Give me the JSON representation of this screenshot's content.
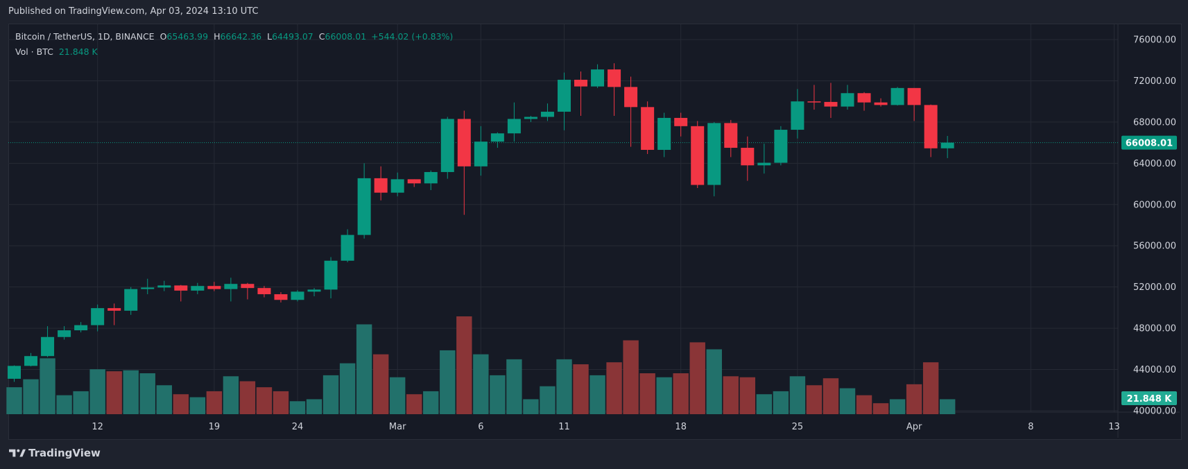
{
  "header": {
    "published": "Published on TradingView.com, Apr 03, 2024 13:10 UTC"
  },
  "legend": {
    "symbol": "Bitcoin / TetherUS, 1D, BINANCE",
    "o_label": "O",
    "o_value": "65463.99",
    "h_label": "H",
    "h_value": "66642.36",
    "l_label": "L",
    "l_value": "64493.07",
    "c_label": "C",
    "c_value": "66008.01",
    "change": "+544.02 (+0.83%)",
    "vol_label": "Vol · BTC",
    "vol_value": "21.848 K"
  },
  "footer": {
    "brand": "TradingView"
  },
  "colors": {
    "up": "#089981",
    "down": "#f23645",
    "up_vol": "#22716b",
    "down_vol": "#8a3537",
    "bg": "#161a25",
    "grid": "#262a35",
    "text": "#d1d4dc"
  },
  "chart_data": {
    "type": "candlestick",
    "title": "Bitcoin / TetherUS, 1D, BINANCE",
    "y_ticks": [
      "76000.00",
      "72000.00",
      "68000.00",
      "64000.00",
      "60000.00",
      "56000.00",
      "52000.00",
      "48000.00",
      "44000.00",
      "40000.00"
    ],
    "y_range": [
      40000,
      76000
    ],
    "last_price_label": "66008.01",
    "last_volume_label": "21.848 K",
    "x_ticks": [
      {
        "label": "12",
        "date": "2024-02-12"
      },
      {
        "label": "19",
        "date": "2024-02-19"
      },
      {
        "label": "24",
        "date": "2024-02-24"
      },
      {
        "label": "Mar",
        "date": "2024-03-01"
      },
      {
        "label": "6",
        "date": "2024-03-06"
      },
      {
        "label": "11",
        "date": "2024-03-11"
      },
      {
        "label": "18",
        "date": "2024-03-18"
      },
      {
        "label": "25",
        "date": "2024-03-25"
      },
      {
        "label": "Apr",
        "date": "2024-04-01"
      },
      {
        "label": "8",
        "date": "2024-04-08"
      },
      {
        "label": "13",
        "date": "2024-04-13"
      }
    ],
    "candles": [
      {
        "date": "2024-02-07",
        "o": 43100,
        "h": 44400,
        "l": 42800,
        "c": 44350,
        "v": 27000
      },
      {
        "date": "2024-02-08",
        "o": 44350,
        "h": 45600,
        "l": 44300,
        "c": 45300,
        "v": 35000
      },
      {
        "date": "2024-02-09",
        "o": 45300,
        "h": 48200,
        "l": 45200,
        "c": 47150,
        "v": 56000
      },
      {
        "date": "2024-02-10",
        "o": 47150,
        "h": 48200,
        "l": 46900,
        "c": 47800,
        "v": 19000
      },
      {
        "date": "2024-02-11",
        "o": 47800,
        "h": 48600,
        "l": 47600,
        "c": 48300,
        "v": 23000
      },
      {
        "date": "2024-02-12",
        "o": 48300,
        "h": 50300,
        "l": 47700,
        "c": 49950,
        "v": 45000
      },
      {
        "date": "2024-02-13",
        "o": 49950,
        "h": 50400,
        "l": 48300,
        "c": 49700,
        "v": 43000
      },
      {
        "date": "2024-02-14",
        "o": 49700,
        "h": 52000,
        "l": 49300,
        "c": 51800,
        "v": 44000
      },
      {
        "date": "2024-02-15",
        "o": 51800,
        "h": 52800,
        "l": 51300,
        "c": 51950,
        "v": 41000
      },
      {
        "date": "2024-02-16",
        "o": 51950,
        "h": 52600,
        "l": 51600,
        "c": 52150,
        "v": 29000
      },
      {
        "date": "2024-02-17",
        "o": 52150,
        "h": 52200,
        "l": 50600,
        "c": 51650,
        "v": 20000
      },
      {
        "date": "2024-02-18",
        "o": 51650,
        "h": 52400,
        "l": 51300,
        "c": 52100,
        "v": 17000
      },
      {
        "date": "2024-02-19",
        "o": 52100,
        "h": 52500,
        "l": 51600,
        "c": 51800,
        "v": 23000
      },
      {
        "date": "2024-02-20",
        "o": 51800,
        "h": 52900,
        "l": 50600,
        "c": 52300,
        "v": 38000
      },
      {
        "date": "2024-02-21",
        "o": 52300,
        "h": 52400,
        "l": 50800,
        "c": 51900,
        "v": 33000
      },
      {
        "date": "2024-02-22",
        "o": 51900,
        "h": 52100,
        "l": 51000,
        "c": 51300,
        "v": 27000
      },
      {
        "date": "2024-02-23",
        "o": 51300,
        "h": 51500,
        "l": 50500,
        "c": 50750,
        "v": 23000
      },
      {
        "date": "2024-02-24",
        "o": 50750,
        "h": 51700,
        "l": 50600,
        "c": 51550,
        "v": 13000
      },
      {
        "date": "2024-02-25",
        "o": 51550,
        "h": 51900,
        "l": 51100,
        "c": 51750,
        "v": 15000
      },
      {
        "date": "2024-02-26",
        "o": 51750,
        "h": 54900,
        "l": 50900,
        "c": 54550,
        "v": 39000
      },
      {
        "date": "2024-02-27",
        "o": 54550,
        "h": 57600,
        "l": 54400,
        "c": 57050,
        "v": 51000
      },
      {
        "date": "2024-02-28",
        "o": 57050,
        "h": 64000,
        "l": 56700,
        "c": 62550,
        "v": 90000
      },
      {
        "date": "2024-02-29",
        "o": 62550,
        "h": 63700,
        "l": 60400,
        "c": 61150,
        "v": 60000
      },
      {
        "date": "2024-03-01",
        "o": 61150,
        "h": 63100,
        "l": 60800,
        "c": 62450,
        "v": 37000
      },
      {
        "date": "2024-03-02",
        "o": 62450,
        "h": 62450,
        "l": 61700,
        "c": 62050,
        "v": 20000
      },
      {
        "date": "2024-03-03",
        "o": 62050,
        "h": 63300,
        "l": 61400,
        "c": 63150,
        "v": 23000
      },
      {
        "date": "2024-03-04",
        "o": 63150,
        "h": 68500,
        "l": 62500,
        "c": 68300,
        "v": 64000
      },
      {
        "date": "2024-03-05",
        "o": 68300,
        "h": 69100,
        "l": 59000,
        "c": 63700,
        "v": 98000
      },
      {
        "date": "2024-03-06",
        "o": 63700,
        "h": 67600,
        "l": 62800,
        "c": 66100,
        "v": 60000
      },
      {
        "date": "2024-03-07",
        "o": 66100,
        "h": 67000,
        "l": 65500,
        "c": 66900,
        "v": 39000
      },
      {
        "date": "2024-03-08",
        "o": 66900,
        "h": 69900,
        "l": 66100,
        "c": 68300,
        "v": 55000
      },
      {
        "date": "2024-03-09",
        "o": 68300,
        "h": 68600,
        "l": 68000,
        "c": 68500,
        "v": 15000
      },
      {
        "date": "2024-03-10",
        "o": 68500,
        "h": 69800,
        "l": 68100,
        "c": 69000,
        "v": 28000
      },
      {
        "date": "2024-03-11",
        "o": 69000,
        "h": 72800,
        "l": 67200,
        "c": 72100,
        "v": 55000
      },
      {
        "date": "2024-03-12",
        "o": 72100,
        "h": 72900,
        "l": 68600,
        "c": 71450,
        "v": 50000
      },
      {
        "date": "2024-03-13",
        "o": 71450,
        "h": 73600,
        "l": 71300,
        "c": 73100,
        "v": 39000
      },
      {
        "date": "2024-03-14",
        "o": 73100,
        "h": 73700,
        "l": 68600,
        "c": 71400,
        "v": 52000
      },
      {
        "date": "2024-03-15",
        "o": 71400,
        "h": 72400,
        "l": 65600,
        "c": 69450,
        "v": 74000
      },
      {
        "date": "2024-03-16",
        "o": 69450,
        "h": 70000,
        "l": 64900,
        "c": 65300,
        "v": 41000
      },
      {
        "date": "2024-03-17",
        "o": 65300,
        "h": 68900,
        "l": 64600,
        "c": 68400,
        "v": 37000
      },
      {
        "date": "2024-03-18",
        "o": 68400,
        "h": 68900,
        "l": 66600,
        "c": 67600,
        "v": 41000
      },
      {
        "date": "2024-03-19",
        "o": 67600,
        "h": 68100,
        "l": 61600,
        "c": 61900,
        "v": 72000
      },
      {
        "date": "2024-03-20",
        "o": 61900,
        "h": 68000,
        "l": 60800,
        "c": 67900,
        "v": 65000
      },
      {
        "date": "2024-03-21",
        "o": 67900,
        "h": 68200,
        "l": 64600,
        "c": 65500,
        "v": 38000
      },
      {
        "date": "2024-03-22",
        "o": 65500,
        "h": 66600,
        "l": 62300,
        "c": 63800,
        "v": 37000
      },
      {
        "date": "2024-03-23",
        "o": 63800,
        "h": 65900,
        "l": 63000,
        "c": 64050,
        "v": 20000
      },
      {
        "date": "2024-03-24",
        "o": 64050,
        "h": 67600,
        "l": 63800,
        "c": 67250,
        "v": 23000
      },
      {
        "date": "2024-03-25",
        "o": 67250,
        "h": 71200,
        "l": 66400,
        "c": 70000,
        "v": 38000
      },
      {
        "date": "2024-03-26",
        "o": 70000,
        "h": 71600,
        "l": 69200,
        "c": 69950,
        "v": 29000
      },
      {
        "date": "2024-03-27",
        "o": 69950,
        "h": 71800,
        "l": 68400,
        "c": 69500,
        "v": 36000
      },
      {
        "date": "2024-03-28",
        "o": 69500,
        "h": 71600,
        "l": 69200,
        "c": 70800,
        "v": 26000
      },
      {
        "date": "2024-03-29",
        "o": 70800,
        "h": 70900,
        "l": 69100,
        "c": 69900,
        "v": 19000
      },
      {
        "date": "2024-03-30",
        "o": 69900,
        "h": 70300,
        "l": 69500,
        "c": 69650,
        "v": 11000
      },
      {
        "date": "2024-03-31",
        "o": 69650,
        "h": 71400,
        "l": 69600,
        "c": 71300,
        "v": 15000
      },
      {
        "date": "2024-04-01",
        "o": 71300,
        "h": 71300,
        "l": 68100,
        "c": 69650,
        "v": 30000
      },
      {
        "date": "2024-04-02",
        "o": 69650,
        "h": 69700,
        "l": 64600,
        "c": 65450,
        "v": 52000
      },
      {
        "date": "2024-04-03",
        "o": 65450,
        "h": 66650,
        "l": 64500,
        "c": 66000,
        "v": 15000
      }
    ]
  }
}
